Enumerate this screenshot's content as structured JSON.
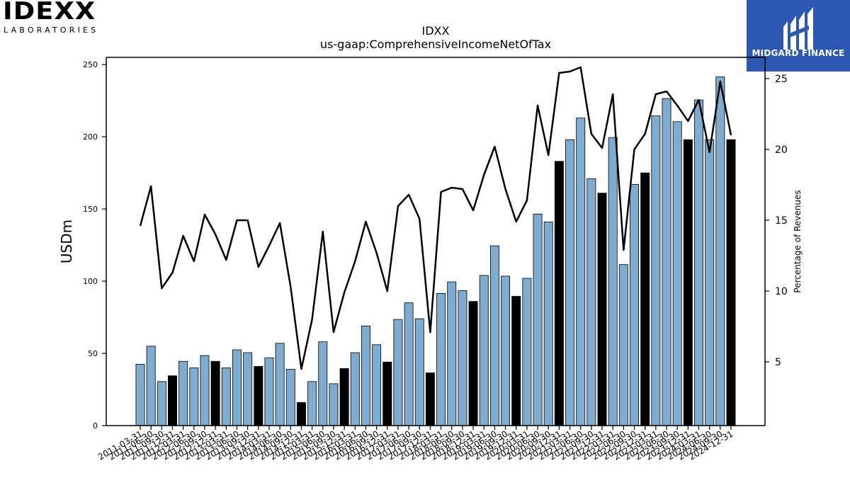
{
  "branding": {
    "left_logo_word": "IDEXX",
    "left_logo_sub": "LABORATORIES",
    "right_logo_name": "MIDGARD FINANCE",
    "right_logo_bg": "#2b58b3"
  },
  "chart_data": {
    "type": "bar",
    "title": "IDXX",
    "subtitle": "us-gaap:ComprehensiveIncomeNetOfTax",
    "ylabel": "USDm",
    "ylabel_right": "Percentage of Revenues",
    "ylim": [
      0,
      255
    ],
    "y2lim": [
      0.5,
      26.5
    ],
    "yticks": [
      0,
      50,
      100,
      150,
      200,
      250
    ],
    "y2ticks": [
      5,
      10,
      15,
      20,
      25
    ],
    "grid": false,
    "colors": {
      "bar": "#7eabd0",
      "bar_q4": "#000000",
      "line": "#000000"
    },
    "categories": [
      "2011-03-31",
      "2011-06-30",
      "2011-09-30",
      "2011-12-31",
      "2012-03-31",
      "2012-06-30",
      "2012-09-30",
      "2012-12-31",
      "2013-03-31",
      "2013-06-30",
      "2013-09-30",
      "2013-12-31",
      "2014-03-31",
      "2014-06-30",
      "2014-09-30",
      "2014-12-31",
      "2015-03-31",
      "2015-06-30",
      "2015-09-30",
      "2015-12-31",
      "2016-03-31",
      "2016-06-30",
      "2016-09-30",
      "2016-12-31",
      "2017-03-31",
      "2017-06-30",
      "2017-09-30",
      "2017-12-31",
      "2018-03-31",
      "2018-06-30",
      "2018-09-30",
      "2018-12-31",
      "2019-03-31",
      "2019-06-30",
      "2019-09-30",
      "2019-12-31",
      "2020-03-31",
      "2020-06-30",
      "2020-09-30",
      "2020-12-31",
      "2021-03-31",
      "2021-06-30",
      "2021-09-30",
      "2021-12-31",
      "2022-03-31",
      "2022-06-30",
      "2022-09-30",
      "2022-12-31",
      "2023-03-31",
      "2023-06-30",
      "2023-09-30",
      "2023-12-31",
      "2024-03-31",
      "2024-06-30",
      "2024-09-30",
      "2024-12-31"
    ],
    "xtick_labels": [
      "2011-03-31",
      "2011-06-30",
      "2011-09-30",
      "2011-12-31",
      "2012-03-31",
      "2012-06-30",
      "2012-09-30",
      "2012-12-31",
      "2013-03-31",
      "2013-06-30",
      "2013-09-30",
      "2013-12-31",
      "2014-03-31",
      "2014-06-30",
      "2014-09-30",
      "2014-12-31",
      "2015-03-31",
      "2015-06-30",
      "2015-09-30",
      "2015-12-31",
      "2016-03-31",
      "2016-06-30",
      "2016-09-30",
      "2016-12-31",
      "2017-03-31",
      "2017-06-30",
      "2017-09-30",
      "2017-12-31",
      "2018-03-31",
      "2018-06-30",
      "2018-09-30",
      "2018-12-31",
      "2019-03-31",
      "2019-06-30",
      "2019-09-30",
      "2019-12-31",
      "2020-03-31",
      "2020-06-30",
      "2020-09-30",
      "2020-12-31",
      "2021-03-31",
      "2021-06-30",
      "2021-09-30",
      "2021-12-31",
      "2022-03-31",
      "2022-06-30",
      "2022-09-30",
      "2022-12-31",
      "2023-03-31",
      "2023-06-30",
      "2023-09-30",
      "2023-12-31",
      "2024-03-31",
      "2024-06-30",
      "2024-09-30",
      "2024-12-31"
    ],
    "series": [
      {
        "type": "bar",
        "axis": "left",
        "values": [
          42.5,
          55,
          30.5,
          34.5,
          44.5,
          40,
          48.5,
          44.5,
          40,
          52.5,
          50.5,
          41,
          47,
          57,
          39,
          16,
          30.5,
          58,
          29,
          39.5,
          50.5,
          69,
          56,
          44,
          73.5,
          85,
          74,
          36.5,
          91.5,
          99.5,
          93.5,
          86,
          104,
          124.5,
          103.5,
          89.5,
          102,
          146.5,
          141,
          183,
          198,
          213,
          171,
          161,
          199.5,
          111.5,
          167,
          175,
          214.5,
          226.5,
          210.5,
          198,
          225.5,
          198,
          241.5,
          198
        ]
      },
      {
        "type": "line",
        "axis": "right",
        "values": [
          14.6,
          17.4,
          10.2,
          11.3,
          13.9,
          12.1,
          15.4,
          14.0,
          12.2,
          15.0,
          15.0,
          11.7,
          13.2,
          14.8,
          10.3,
          4.5,
          8.0,
          14.2,
          7.1,
          9.9,
          12.1,
          14.9,
          12.7,
          10.0,
          16.0,
          16.8,
          15.1,
          7.1,
          17.0,
          17.3,
          17.2,
          15.7,
          18.2,
          20.2,
          17.2,
          14.9,
          16.4,
          23.1,
          19.6,
          25.4,
          25.5,
          25.8,
          21.1,
          20.1,
          23.9,
          12.9,
          20.0,
          21.1,
          23.9,
          24.1,
          23.1,
          22.0,
          23.5,
          19.8,
          24.8,
          21.0
        ]
      }
    ]
  }
}
